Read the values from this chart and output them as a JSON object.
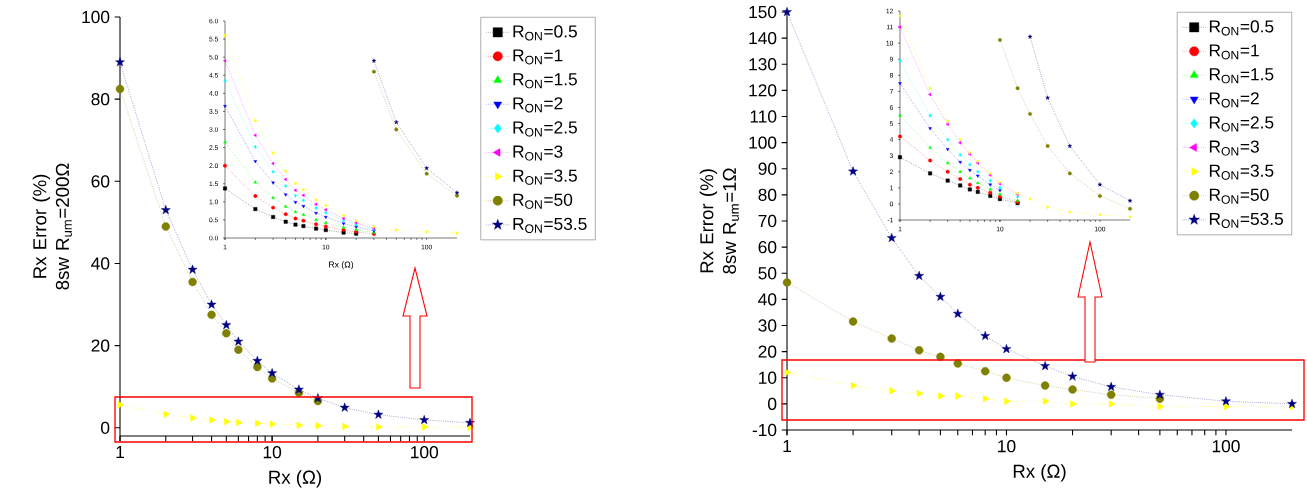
{
  "chart_data": [
    {
      "type": "line",
      "xlabel": "Rx (Ω)",
      "ylabel": "Rx Error (%) 8sw R$_{um}$=200Ω",
      "log": "x",
      "xlim": [
        1,
        200
      ],
      "ylim": [
        -2,
        100
      ],
      "xticks": [
        1,
        10,
        100
      ],
      "yticks": [
        0,
        20,
        40,
        60,
        80,
        100
      ],
      "legend": "right",
      "line_style": "dotted",
      "x": [
        1,
        2,
        3,
        4,
        5,
        6,
        8,
        10,
        15,
        20,
        30,
        50,
        100,
        200
      ],
      "series": [
        {
          "name": "R$_{ON}$=0.5",
          "color": "#000000",
          "marker": "square",
          "values": [
            null,
            null,
            null,
            null,
            null,
            null,
            null,
            null,
            null,
            null,
            null,
            null,
            null,
            null
          ]
        },
        {
          "name": "R$_{ON}$=1",
          "color": "#ff0000",
          "marker": "circle",
          "values": [
            null,
            null,
            null,
            null,
            null,
            null,
            null,
            null,
            null,
            null,
            null,
            null,
            null,
            null
          ]
        },
        {
          "name": "R$_{ON}$=1.5",
          "color": "#00ff00",
          "marker": "triangle",
          "values": [
            null,
            null,
            null,
            null,
            null,
            null,
            null,
            null,
            null,
            null,
            null,
            null,
            null,
            null
          ]
        },
        {
          "name": "R$_{ON}$=2",
          "color": "#0000ff",
          "marker": "triangle-down",
          "values": [
            null,
            null,
            null,
            null,
            null,
            null,
            null,
            null,
            null,
            null,
            null,
            null,
            null,
            null
          ]
        },
        {
          "name": "R$_{ON}$=2.5",
          "color": "#00ffff",
          "marker": "diamond",
          "values": [
            null,
            null,
            null,
            null,
            null,
            null,
            null,
            null,
            null,
            null,
            null,
            null,
            null,
            null
          ]
        },
        {
          "name": "R$_{ON}$=3",
          "color": "#ff00ff",
          "marker": "triangle-left",
          "values": [
            null,
            null,
            null,
            null,
            null,
            null,
            null,
            null,
            null,
            null,
            null,
            null,
            null,
            null
          ]
        },
        {
          "name": "R$_{ON}$=3.5",
          "color": "#ffff00",
          "marker": "triangle-right",
          "values": [
            5.6,
            3.3,
            2.4,
            1.9,
            1.5,
            1.3,
            1.1,
            0.9,
            0.6,
            0.5,
            0.3,
            0.2,
            0.2,
            0.1
          ]
        },
        {
          "name": "R$_{ON}$=50",
          "color": "#808000",
          "marker": "circle",
          "values": [
            82.5,
            49,
            35.5,
            27.5,
            23,
            19,
            14.8,
            12,
            8.5,
            6.5,
            null,
            null,
            null,
            null
          ]
        },
        {
          "name": "R$_{ON}$=53.5",
          "color": "#000080",
          "marker": "star",
          "values": [
            89,
            53,
            38.5,
            30,
            25,
            21,
            16.3,
            13.3,
            9.3,
            7.2,
            4.9,
            3.2,
            1.9,
            1.2
          ]
        }
      ]
    },
    {
      "type": "line",
      "xlabel": "Rx (Ω)",
      "log": "x",
      "xlim": [
        1,
        200
      ],
      "ylim": [
        0,
        6
      ],
      "xticks": [
        1,
        10,
        100
      ],
      "yticks": [
        {
          "value": 0,
          "label": "0.0"
        },
        {
          "value": 0.5,
          "label": "0.5"
        },
        {
          "value": 1,
          "label": "1.0"
        },
        {
          "value": 1.5,
          "label": "1.5"
        },
        {
          "value": 2,
          "label": "2.0"
        },
        {
          "value": 2.5,
          "label": "2.5"
        },
        {
          "value": 3,
          "label": "3.0"
        },
        {
          "value": 3.5,
          "label": "3.5"
        },
        {
          "value": 4,
          "label": "4.0"
        },
        {
          "value": 4.5,
          "label": "4.5"
        },
        {
          "value": 5,
          "label": "5.0"
        },
        {
          "value": 5.5,
          "label": "5.5"
        },
        {
          "value": 6,
          "label": "6.0"
        }
      ],
      "line_style": "dotted",
      "x": [
        1,
        2,
        3,
        4,
        5,
        6,
        8,
        10,
        15,
        20,
        30,
        50,
        100,
        200
      ],
      "series": [
        {
          "color": "#000000",
          "marker": "square",
          "values": [
            1.37,
            0.8,
            0.58,
            0.45,
            0.37,
            0.33,
            0.26,
            0.22,
            0.15,
            0.12,
            null,
            null,
            null,
            null
          ]
        },
        {
          "color": "#ff0000",
          "marker": "circle",
          "values": [
            2.0,
            1.16,
            0.84,
            0.66,
            0.54,
            0.48,
            0.38,
            0.32,
            0.22,
            0.17,
            0.11,
            null,
            null,
            null
          ]
        },
        {
          "color": "#00ff00",
          "marker": "triangle",
          "values": [
            2.65,
            1.54,
            1.11,
            0.87,
            0.72,
            0.64,
            0.5,
            0.42,
            0.29,
            0.23,
            0.15,
            null,
            null,
            null
          ]
        },
        {
          "color": "#0000ff",
          "marker": "triangle-down",
          "values": [
            3.65,
            2.12,
            1.53,
            1.2,
            0.99,
            0.88,
            0.69,
            0.58,
            0.4,
            0.31,
            0.2,
            null,
            null,
            null
          ]
        },
        {
          "color": "#00ffff",
          "marker": "diamond",
          "values": [
            4.35,
            2.52,
            1.83,
            1.44,
            1.17,
            1.04,
            0.83,
            0.7,
            0.48,
            0.37,
            0.24,
            null,
            null,
            null
          ]
        },
        {
          "color": "#ff00ff",
          "marker": "triangle-left",
          "values": [
            4.9,
            2.84,
            2.06,
            1.62,
            1.32,
            1.18,
            0.93,
            0.78,
            0.54,
            0.42,
            0.27,
            null,
            null,
            null
          ]
        },
        {
          "color": "#ffff00",
          "marker": "triangle-right",
          "values": [
            5.6,
            3.25,
            2.35,
            1.85,
            1.51,
            1.34,
            1.06,
            0.9,
            0.62,
            0.48,
            0.31,
            0.22,
            0.17,
            0.14
          ]
        },
        {
          "color": "#808000",
          "marker": "circle",
          "values": [
            null,
            null,
            null,
            null,
            null,
            null,
            null,
            null,
            null,
            null,
            4.6,
            3.0,
            1.78,
            1.17
          ]
        },
        {
          "color": "#000080",
          "marker": "star",
          "values": [
            null,
            null,
            null,
            null,
            null,
            null,
            null,
            null,
            null,
            null,
            4.9,
            3.2,
            1.93,
            1.25
          ]
        }
      ]
    },
    {
      "type": "line",
      "xlabel": "Rx (Ω)",
      "ylabel": "Rx Error (%) 8sw R$_{um}$=1Ω",
      "log": "x",
      "xlim": [
        1,
        200
      ],
      "ylim": [
        -10,
        150
      ],
      "xticks": [
        1,
        10,
        100
      ],
      "yticks": [
        -10,
        0,
        10,
        20,
        30,
        40,
        50,
        60,
        70,
        80,
        90,
        100,
        110,
        120,
        130,
        140,
        150
      ],
      "legend": "top right",
      "line_style": "dotted",
      "x": [
        1,
        2,
        3,
        4,
        5,
        6,
        8,
        10,
        15,
        20,
        30,
        50,
        100,
        200
      ],
      "series": [
        {
          "name": "R$_{ON}$=0.5",
          "color": "#000000",
          "marker": "square",
          "values": [
            null,
            null,
            null,
            null,
            null,
            null,
            null,
            null,
            null,
            null,
            null,
            null,
            null,
            null
          ]
        },
        {
          "name": "R$_{ON}$=1",
          "color": "#ff0000",
          "marker": "circle",
          "values": [
            null,
            null,
            null,
            null,
            null,
            null,
            null,
            null,
            null,
            null,
            null,
            null,
            null,
            null
          ]
        },
        {
          "name": "R$_{ON}$=1.5",
          "color": "#00ff00",
          "marker": "triangle",
          "values": [
            null,
            null,
            null,
            null,
            null,
            null,
            null,
            null,
            null,
            null,
            null,
            null,
            null,
            null
          ]
        },
        {
          "name": "R$_{ON}$=2",
          "color": "#0000ff",
          "marker": "triangle-down",
          "values": [
            null,
            null,
            null,
            null,
            null,
            null,
            null,
            null,
            null,
            null,
            null,
            null,
            null,
            null
          ]
        },
        {
          "name": "R$_{ON}$=2.5",
          "color": "#00ffff",
          "marker": "diamond",
          "values": [
            null,
            null,
            null,
            null,
            null,
            null,
            null,
            null,
            null,
            null,
            null,
            null,
            null,
            null
          ]
        },
        {
          "name": "R$_{ON}$=3",
          "color": "#ff00ff",
          "marker": "triangle-left",
          "values": [
            null,
            null,
            null,
            null,
            null,
            null,
            null,
            null,
            null,
            null,
            null,
            null,
            null,
            null
          ]
        },
        {
          "name": "R$_{ON}$=3.5",
          "color": "#ffff00",
          "marker": "triangle-right",
          "values": [
            12,
            7,
            5,
            4,
            3,
            3,
            2,
            1,
            1,
            0,
            0,
            -1,
            -1,
            -1
          ]
        },
        {
          "name": "R$_{ON}$=50",
          "color": "#808000",
          "marker": "circle",
          "values": [
            46.5,
            31.5,
            25,
            20.5,
            18,
            15.5,
            12.5,
            10,
            7,
            5.5,
            3.5,
            2,
            null,
            null
          ]
        },
        {
          "name": "R$_{ON}$=53.5",
          "color": "#000080",
          "marker": "star",
          "values": [
            150,
            89,
            63.5,
            49,
            41,
            34.5,
            26,
            21,
            14.5,
            10.5,
            6.5,
            3.5,
            1,
            0
          ]
        }
      ]
    },
    {
      "type": "line",
      "log": "x",
      "xlim": [
        1,
        200
      ],
      "ylim": [
        -1,
        12
      ],
      "xticks": [
        1,
        10,
        100
      ],
      "yticks": [
        -1,
        0,
        1,
        2,
        3,
        4,
        5,
        6,
        7,
        8,
        9,
        10,
        11,
        12
      ],
      "line_style": "dotted",
      "x": [
        1,
        2,
        3,
        4,
        5,
        6,
        8,
        10,
        15,
        20,
        30,
        50,
        100,
        200
      ],
      "series": [
        {
          "color": "#000000",
          "marker": "square",
          "values": [
            2.9,
            1.9,
            1.45,
            1.15,
            0.9,
            0.75,
            0.5,
            0.3,
            0.05,
            null,
            null,
            null,
            null,
            null
          ]
        },
        {
          "color": "#ff0000",
          "marker": "circle",
          "values": [
            4.2,
            2.7,
            2.0,
            1.55,
            1.2,
            1.0,
            0.7,
            0.45,
            0.12,
            null,
            null,
            null,
            null,
            null
          ]
        },
        {
          "color": "#00ff00",
          "marker": "triangle",
          "values": [
            5.5,
            3.5,
            2.55,
            2.0,
            1.6,
            1.3,
            0.9,
            0.6,
            0.2,
            null,
            null,
            null,
            null,
            null
          ]
        },
        {
          "color": "#0000ff",
          "marker": "triangle-down",
          "values": [
            7.5,
            4.7,
            3.4,
            2.6,
            2.1,
            1.75,
            1.2,
            0.85,
            null,
            null,
            null,
            null,
            null,
            null
          ]
        },
        {
          "color": "#00ffff",
          "marker": "diamond",
          "values": [
            8.9,
            5.5,
            4.0,
            3.05,
            2.45,
            2.0,
            1.45,
            1.0,
            0.45,
            null,
            null,
            null,
            null,
            null
          ]
        },
        {
          "color": "#ff00ff",
          "marker": "triangle-left",
          "values": [
            11.0,
            6.8,
            4.95,
            3.8,
            3.1,
            2.55,
            1.8,
            1.25,
            0.6,
            null,
            null,
            null,
            null,
            null
          ]
        },
        {
          "color": "#ffff00",
          "marker": "triangle-right",
          "values": [
            11.7,
            7.2,
            5.15,
            4.0,
            3.2,
            2.65,
            1.9,
            1.35,
            0.65,
            0.3,
            -0.2,
            -0.5,
            -0.68,
            -0.8
          ]
        },
        {
          "color": "#808000",
          "marker": "circle",
          "values": [
            null,
            null,
            null,
            null,
            null,
            null,
            null,
            10.2,
            7.2,
            5.6,
            3.6,
            1.9,
            0.5,
            -0.3
          ]
        },
        {
          "color": "#000080",
          "marker": "star",
          "values": [
            null,
            null,
            null,
            null,
            null,
            null,
            null,
            null,
            null,
            10.4,
            6.6,
            3.6,
            1.2,
            0.2
          ]
        }
      ]
    }
  ]
}
